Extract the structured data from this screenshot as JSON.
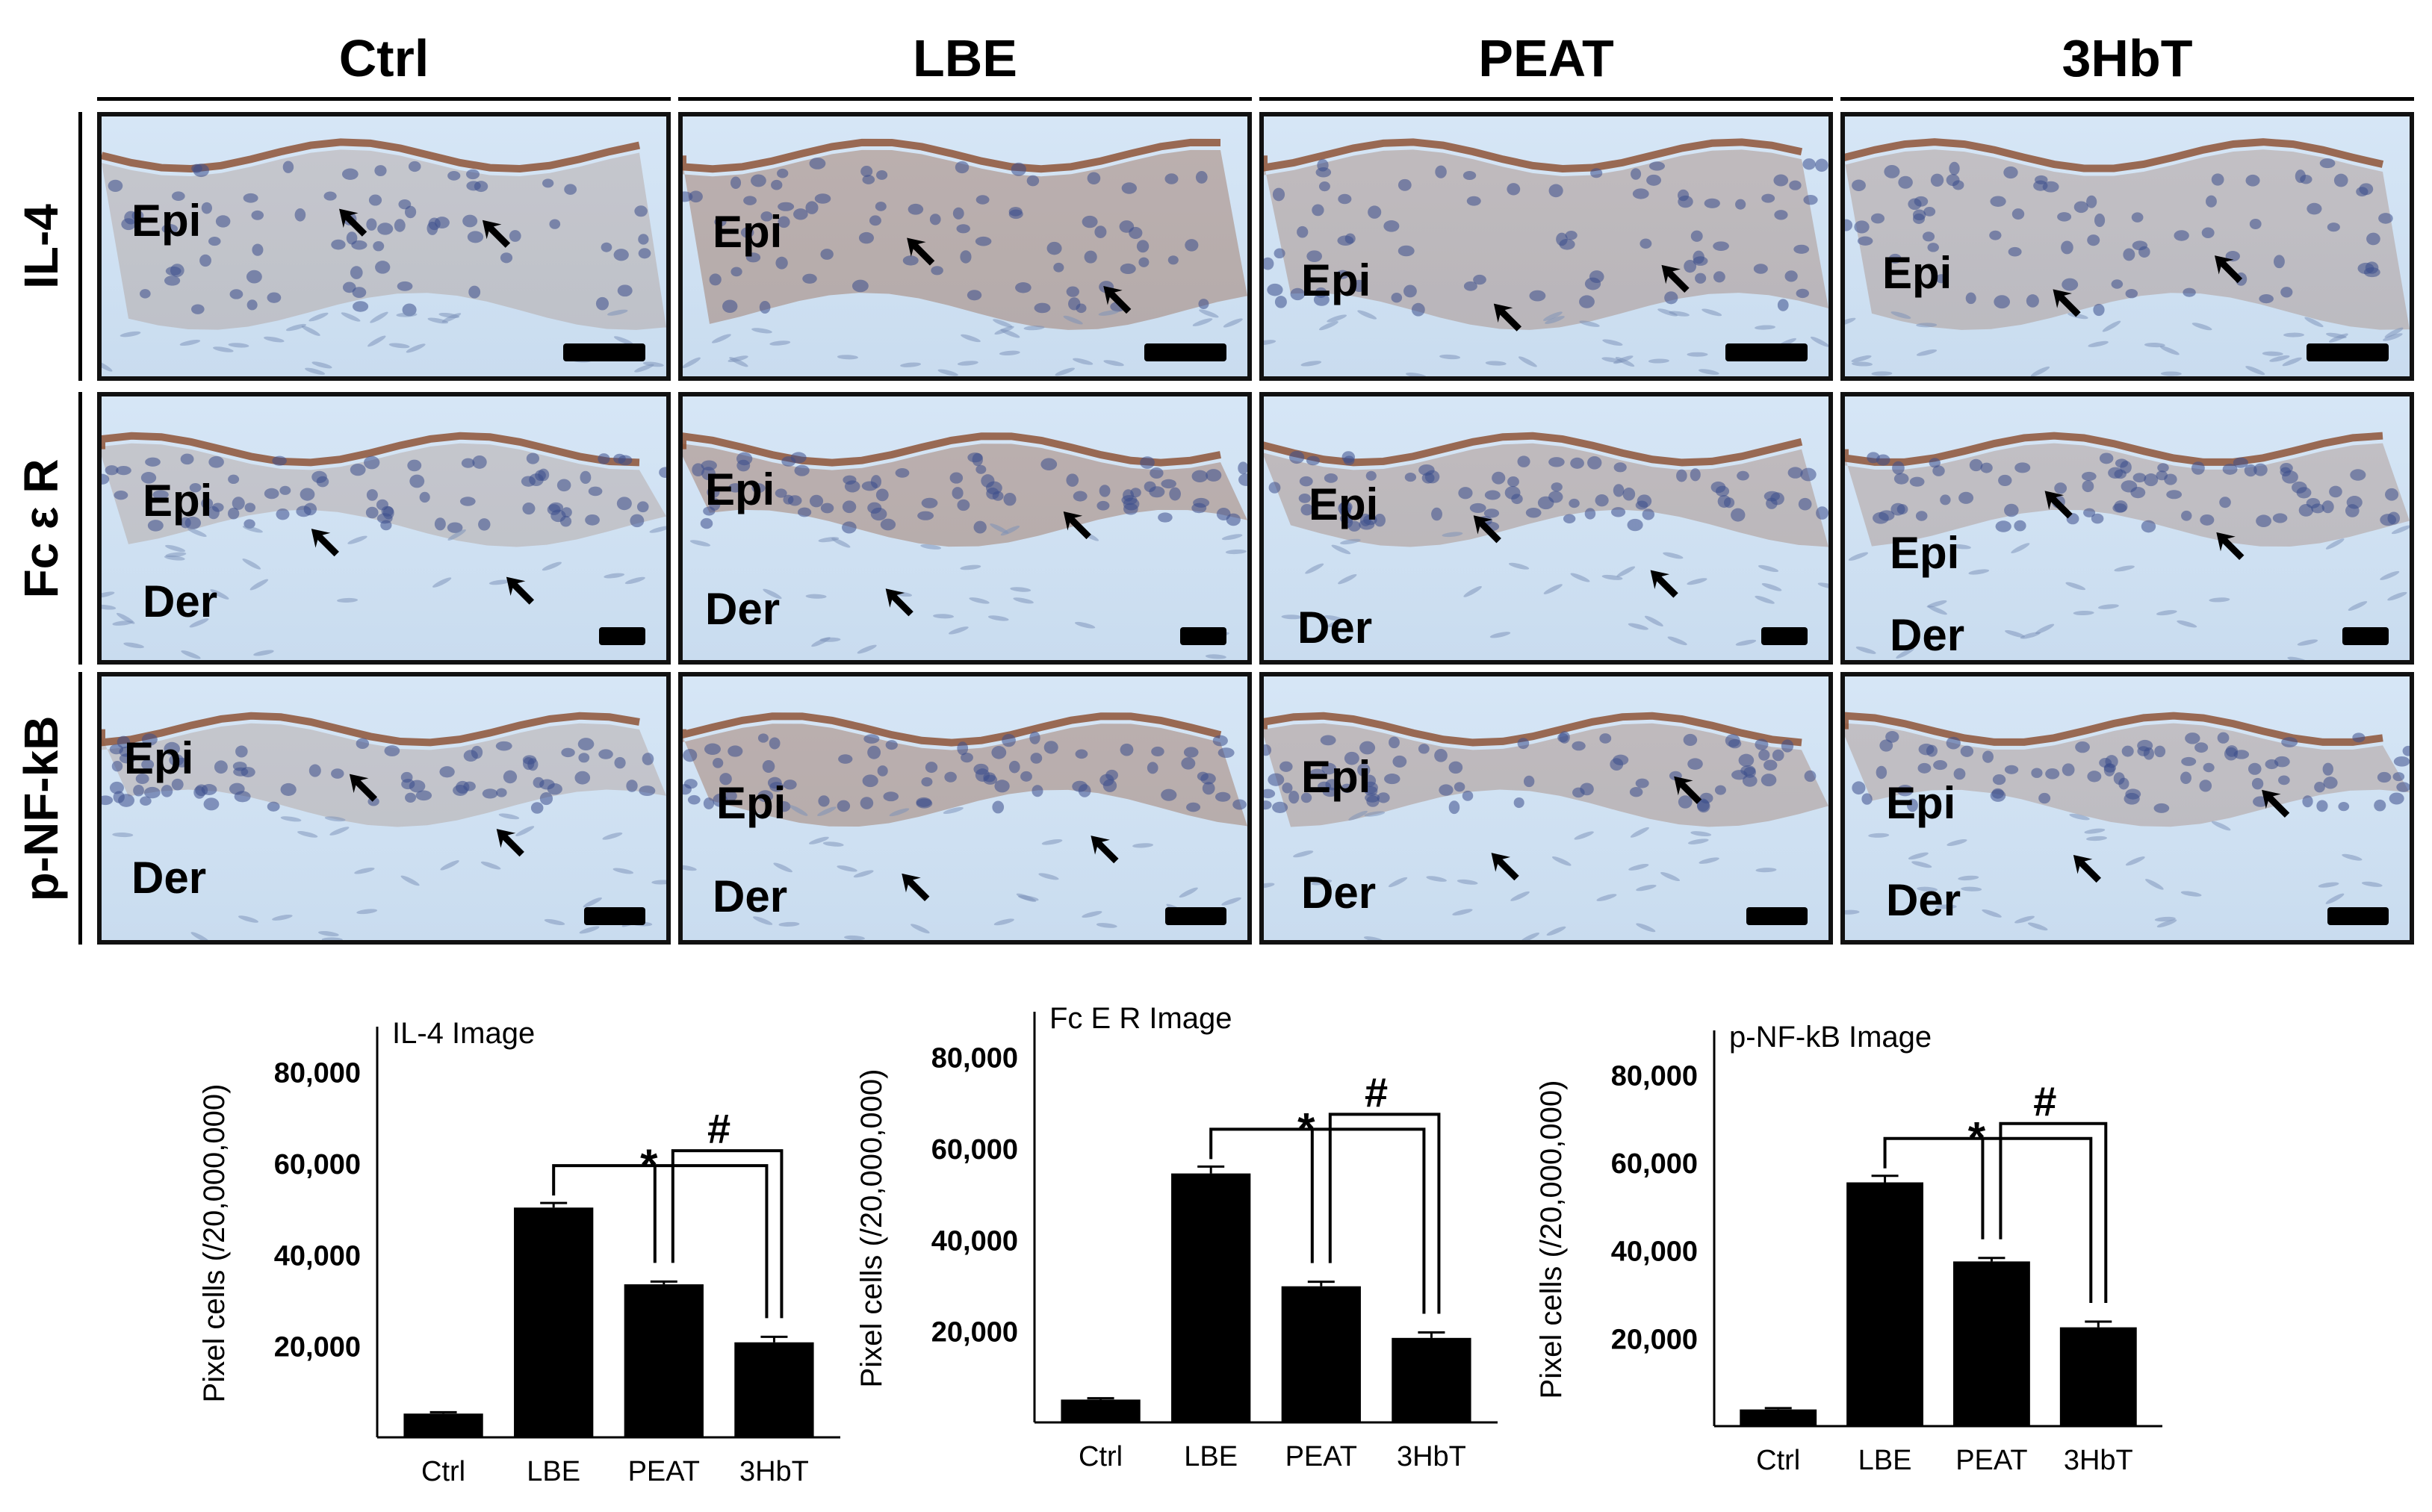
{
  "columns": [
    "Ctrl",
    "LBE",
    "PEAT",
    "3HbT"
  ],
  "rows": [
    {
      "label": "IL-4",
      "panels": [
        {
          "labels": [
            "Epi"
          ]
        },
        {
          "labels": [
            "Epi"
          ]
        },
        {
          "labels": [
            "Epi"
          ]
        },
        {
          "labels": [
            "Epi"
          ]
        }
      ]
    },
    {
      "label": "Fc ε R",
      "panels": [
        {
          "labels": [
            "Epi",
            "Der"
          ]
        },
        {
          "labels": [
            "Epi",
            "Der"
          ]
        },
        {
          "labels": [
            "Epi",
            "Der"
          ]
        },
        {
          "labels": [
            "Epi",
            "Der"
          ]
        }
      ]
    },
    {
      "label": "p-NF-kB",
      "panels": [
        {
          "labels": [
            "Epi",
            "Der"
          ]
        },
        {
          "labels": [
            "Epi",
            "Der"
          ]
        },
        {
          "labels": [
            "Epi",
            "Der"
          ]
        },
        {
          "labels": [
            "Epi",
            "Der"
          ]
        }
      ]
    }
  ],
  "colors": {
    "stain_brown": "#8a4a2a",
    "background_blue": "#cfe0f2",
    "nuclei": "#3d4f8c",
    "bar": "#000000"
  },
  "chart_data": [
    {
      "type": "bar",
      "title": "IL-4 Image",
      "ylabel": "Pixel cells (/20,000,000)",
      "categories": [
        "Ctrl",
        "LBE",
        "PEAT",
        "3HbT"
      ],
      "values": [
        5200,
        50300,
        33500,
        20800
      ],
      "errors": [
        300,
        1000,
        600,
        1200
      ],
      "ylim": [
        0,
        85000
      ],
      "yticks": [
        "20,000",
        "40,000",
        "60,000",
        "80,000"
      ],
      "ytick_values": [
        20000,
        40000,
        60000,
        80000
      ],
      "annotations": [
        "*",
        "#"
      ]
    },
    {
      "type": "bar",
      "title": "Fc Ε R Image",
      "ylabel": "Pixel cells (/20,000,000)",
      "categories": [
        "Ctrl",
        "LBE",
        "PEAT",
        "3HbT"
      ],
      "values": [
        5000,
        54500,
        29800,
        18500
      ],
      "errors": [
        300,
        1500,
        1000,
        1200
      ],
      "ylim": [
        0,
        85000
      ],
      "yticks": [
        "20,000",
        "40,000",
        "60,000",
        "80,000"
      ],
      "ytick_values": [
        20000,
        40000,
        60000,
        80000
      ],
      "annotations": [
        "*",
        "#"
      ]
    },
    {
      "type": "bar",
      "title": "p-NF-kB Image",
      "ylabel": "Pixel cells (/20,000,000)",
      "categories": [
        "Ctrl",
        "LBE",
        "PEAT",
        "3HbT"
      ],
      "values": [
        3800,
        55500,
        37500,
        22500
      ],
      "errors": [
        300,
        1500,
        800,
        1300
      ],
      "ylim": [
        0,
        85000
      ],
      "yticks": [
        "20,000",
        "40,000",
        "60,000",
        "80,000"
      ],
      "ytick_values": [
        20000,
        40000,
        60000,
        80000
      ],
      "annotations": [
        "*",
        "#"
      ]
    }
  ]
}
